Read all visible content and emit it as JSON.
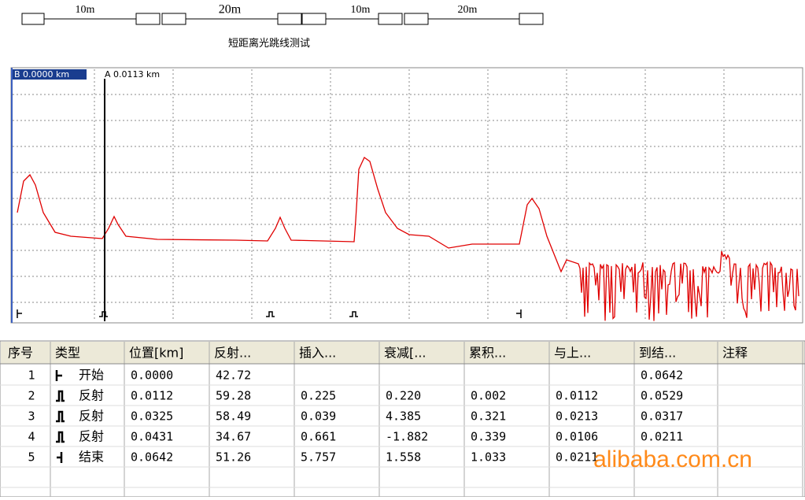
{
  "diagram": {
    "segments": [
      "10m",
      "20m",
      "10m",
      "20m"
    ],
    "caption": "短距离光跳线测试"
  },
  "trace": {
    "cursor_b": "B 0.0000 km",
    "cursor_a": "A 0.0113 km"
  },
  "table": {
    "headers": [
      "序号",
      "类型",
      "位置[km]",
      "反射...",
      "插入...",
      "衰减[...",
      "累积...",
      "与上...",
      "到结...",
      "注释"
    ],
    "rows": [
      [
        "1",
        "开始",
        "0.0000",
        "42.72",
        null,
        null,
        null,
        null,
        "0.0642",
        null
      ],
      [
        "2",
        "反射",
        "0.0112",
        "59.28",
        "0.225",
        "0.220",
        "0.002",
        "0.0112",
        "0.0529",
        null
      ],
      [
        "3",
        "反射",
        "0.0325",
        "58.49",
        "0.039",
        "4.385",
        "0.321",
        "0.0213",
        "0.0317",
        null
      ],
      [
        "4",
        "反射",
        "0.0431",
        "34.67",
        "0.661",
        "-1.882",
        "0.339",
        "0.0106",
        "0.0211",
        null
      ],
      [
        "5",
        "结束",
        "0.0642",
        "51.26",
        "5.757",
        "1.558",
        "1.033",
        "0.0211",
        null,
        null
      ]
    ]
  },
  "watermark": "alibaba.com.cn"
}
